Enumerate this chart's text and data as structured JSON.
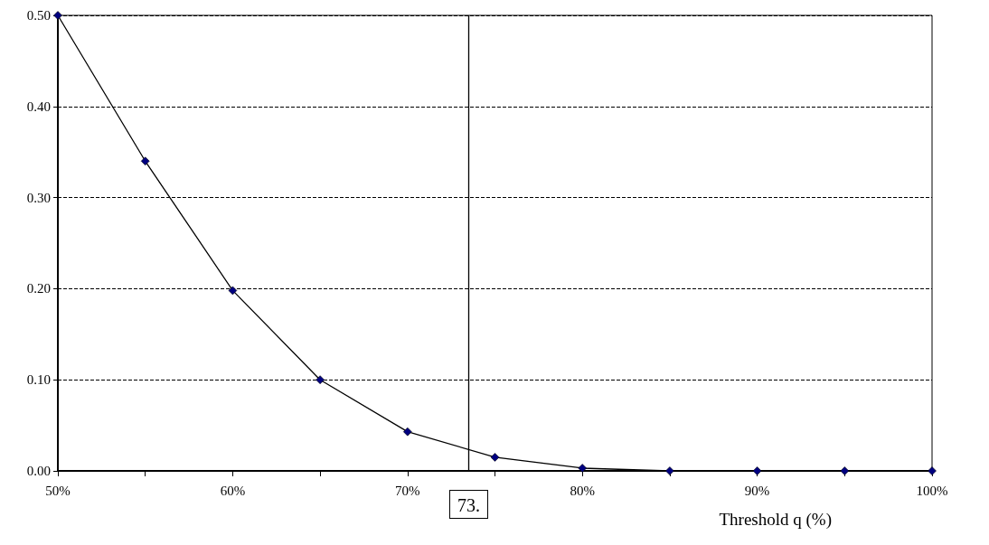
{
  "chart_data": {
    "type": "line",
    "xlabel": "Threshold q (%)",
    "x": [
      50,
      55,
      60,
      65,
      70,
      75,
      80,
      85,
      90,
      95,
      100
    ],
    "series": [
      {
        "color": "#000080",
        "values": [
          0.5,
          0.34,
          0.198,
          0.1,
          0.043,
          0.015,
          0.003,
          0,
          0,
          0,
          0
        ]
      }
    ],
    "xlim": [
      50,
      100
    ],
    "xticks": [
      {
        "value": 50,
        "label": "50%"
      },
      {
        "value": 55,
        "label": null
      },
      {
        "value": 60,
        "label": "60%"
      },
      {
        "value": 65,
        "label": null
      },
      {
        "value": 70,
        "label": "70%"
      },
      {
        "value": 75,
        "label": null
      },
      {
        "value": 80,
        "label": "80%"
      },
      {
        "value": 85,
        "label": null
      },
      {
        "value": 90,
        "label": "90%"
      },
      {
        "value": 95,
        "label": null
      },
      {
        "value": 100,
        "label": "100%"
      }
    ],
    "ylim": [
      0,
      0.5
    ],
    "yticks": [
      {
        "value": 0,
        "label": "0.00"
      },
      {
        "value": 0.1,
        "label": "0.10"
      },
      {
        "value": 0.2,
        "label": "0.20"
      },
      {
        "value": 0.3,
        "label": "0.30"
      },
      {
        "value": 0.4,
        "label": "0.40"
      },
      {
        "value": 0.5,
        "label": "0.50"
      }
    ],
    "grid": "y",
    "marker": "diamond",
    "line_style": "solid",
    "ref_lines": [
      {
        "axis": "x",
        "value": 73.5,
        "label": "73."
      }
    ]
  }
}
